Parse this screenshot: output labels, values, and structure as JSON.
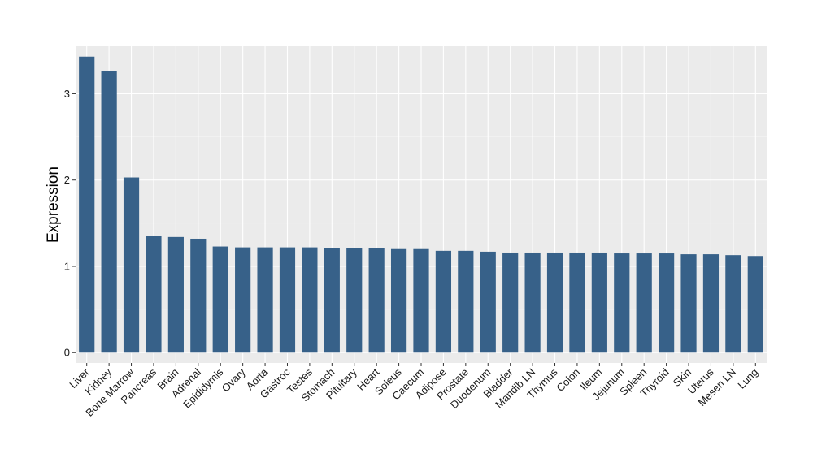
{
  "chart_data": {
    "type": "bar",
    "title": "",
    "xlabel": "",
    "ylabel": "Expression",
    "ylim": [
      -0.12,
      3.55
    ],
    "yticks": [
      0,
      1,
      2,
      3
    ],
    "ytick_labels": [
      "0",
      "1",
      "2",
      "3"
    ],
    "grid": true,
    "bar_color": "#376189",
    "panel_background": "#EBEBEB",
    "categories": [
      "Liver",
      "Kidney",
      "Bone Marrow",
      "Pancreas",
      "Brain",
      "Adrenal",
      "Epididymis",
      "Ovary",
      "Aorta",
      "Gastroc",
      "Testes",
      "Stomach",
      "Pituitary",
      "Heart",
      "Soleus",
      "Caecum",
      "Adipose",
      "Prostate",
      "Duodenum",
      "Bladder",
      "Mandib LN",
      "Thymus",
      "Colon",
      "Ileum",
      "Jejunum",
      "Spleen",
      "Thyroid",
      "Skin",
      "Uterus",
      "Mesen LN",
      "Lung"
    ],
    "values": [
      3.43,
      3.26,
      2.03,
      1.35,
      1.34,
      1.32,
      1.23,
      1.22,
      1.22,
      1.22,
      1.22,
      1.21,
      1.21,
      1.21,
      1.2,
      1.2,
      1.18,
      1.18,
      1.17,
      1.16,
      1.16,
      1.16,
      1.16,
      1.16,
      1.15,
      1.15,
      1.15,
      1.14,
      1.14,
      1.13,
      1.12
    ]
  }
}
